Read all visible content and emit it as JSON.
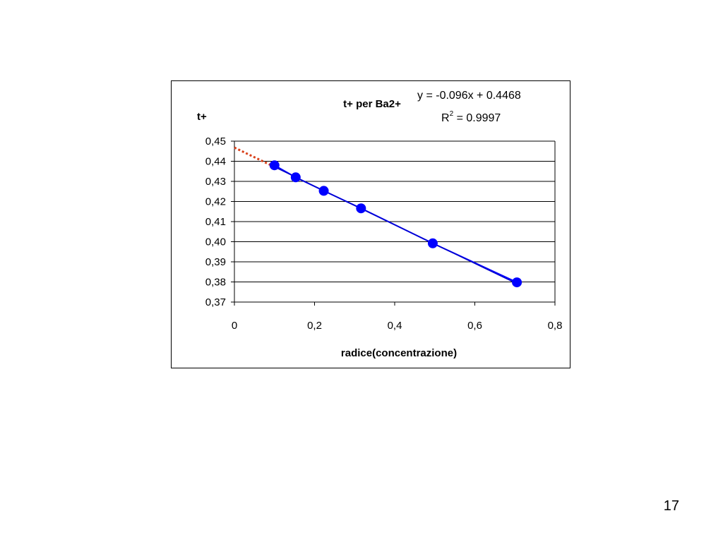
{
  "slide": {
    "number": "17"
  },
  "chart_data": {
    "type": "scatter",
    "title": "t+ per Ba2+",
    "xlabel": "radice(concentrazione)",
    "ylabel": "t+",
    "xlim": [
      0,
      0.8
    ],
    "ylim": [
      0.37,
      0.45
    ],
    "xticks": [
      "0",
      "0,2",
      "0,4",
      "0,6",
      "0,8"
    ],
    "yticks": [
      "0,37",
      "0,38",
      "0,39",
      "0,40",
      "0,41",
      "0,42",
      "0,43",
      "0,44",
      "0,45"
    ],
    "grid": "horizontal",
    "series": [
      {
        "x": [
          0.1,
          0.153,
          0.223,
          0.316,
          0.495,
          0.705
        ],
        "y": [
          0.438,
          0.432,
          0.4253,
          0.4166,
          0.3992,
          0.3798
        ],
        "color": "#0000ff"
      }
    ],
    "trendline": {
      "type": "linear",
      "slope": -0.096,
      "intercept": 0.4468,
      "equation": "y = -0.096x + 0.4468",
      "r2_prefix": "R",
      "r2_exponent": "2",
      "r2_value": " = 0.9997",
      "fit_color": "#0000cc",
      "extrapolation_color": "#d9401a",
      "extrapolation_x": [
        0,
        0.1
      ]
    }
  }
}
